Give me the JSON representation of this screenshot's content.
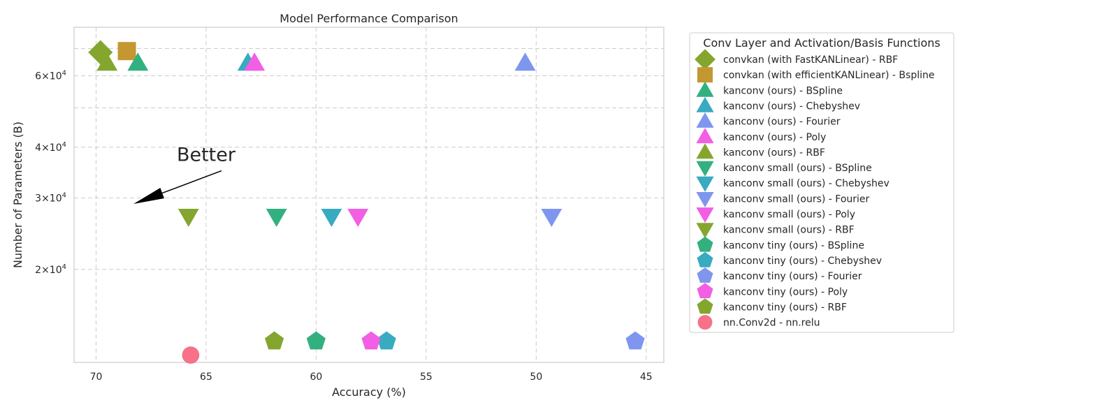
{
  "chart_data": {
    "type": "scatter",
    "title": "Model Performance Comparison",
    "xlabel": "Accuracy (%)",
    "ylabel": "Number of Parameters (B)",
    "x_axis": {
      "range": [
        71,
        44.2
      ],
      "inverted": true,
      "ticks": [
        70,
        65,
        60,
        55,
        50,
        45
      ],
      "tick_labels": [
        "70",
        "65",
        "60",
        "55",
        "50",
        "45"
      ]
    },
    "y_axis": {
      "scale": "log",
      "range": [
        11800,
        79000
      ],
      "major_ticks": [
        20000,
        30000,
        40000,
        60000
      ],
      "major_tick_labels": [
        {
          "base": "2",
          "mult": "×10",
          "exp": "4"
        },
        {
          "base": "3",
          "mult": "×10",
          "exp": "4"
        },
        {
          "base": "4",
          "mult": "×10",
          "exp": "4"
        },
        {
          "base": "6",
          "mult": "×10",
          "exp": "4"
        }
      ],
      "minor_gridlines": [
        50000,
        70000
      ]
    },
    "grid": true,
    "legend": {
      "title": "Conv Layer and Activation/Basis Functions",
      "placement": "outside-right"
    },
    "annotation": {
      "text": "Better",
      "arrow_from": [
        64.3,
        35000
      ],
      "arrow_to": [
        68.3,
        29000
      ],
      "text_at": [
        65,
        37000
      ]
    },
    "series": [
      {
        "name": "convkan (with FastKANLinear) - RBF",
        "marker": "diamond",
        "color": "#84a62e",
        "points": [
          [
            69.8,
            68500
          ]
        ]
      },
      {
        "name": "convkan (with efficientKANLinear) - Bspline",
        "marker": "square",
        "color": "#c59731",
        "points": [
          [
            68.6,
            69000
          ]
        ]
      },
      {
        "name": "kanconv (ours) - BSpline",
        "marker": "triangle-up",
        "color": "#33b080",
        "points": [
          [
            68.1,
            64500
          ]
        ]
      },
      {
        "name": "kanconv (ours) - Chebyshev",
        "marker": "triangle-up",
        "color": "#38abc0",
        "points": [
          [
            63.1,
            64500
          ]
        ]
      },
      {
        "name": "kanconv (ours) - Fourier",
        "marker": "triangle-up",
        "color": "#7f96ef",
        "points": [
          [
            50.5,
            64500
          ]
        ]
      },
      {
        "name": "kanconv (ours) - Poly",
        "marker": "triangle-up",
        "color": "#f25ee4",
        "points": [
          [
            62.8,
            64500
          ]
        ]
      },
      {
        "name": "kanconv (ours) - RBF",
        "marker": "triangle-up",
        "color": "#84a62e",
        "points": [
          [
            69.5,
            64500
          ]
        ]
      },
      {
        "name": "kanconv small (ours) - BSpline",
        "marker": "triangle-down",
        "color": "#33b080",
        "points": [
          [
            61.8,
            27000
          ]
        ]
      },
      {
        "name": "kanconv small (ours) - Chebyshev",
        "marker": "triangle-down",
        "color": "#38abc0",
        "points": [
          [
            59.3,
            27000
          ]
        ]
      },
      {
        "name": "kanconv small (ours) - Fourier",
        "marker": "triangle-down",
        "color": "#7f96ef",
        "points": [
          [
            49.3,
            27000
          ]
        ]
      },
      {
        "name": "kanconv small (ours) - Poly",
        "marker": "triangle-down",
        "color": "#f25ee4",
        "points": [
          [
            58.1,
            27000
          ]
        ]
      },
      {
        "name": "kanconv small (ours) - RBF",
        "marker": "triangle-down",
        "color": "#84a62e",
        "points": [
          [
            65.8,
            27000
          ]
        ]
      },
      {
        "name": "kanconv tiny (ours) - BSpline",
        "marker": "pentagon",
        "color": "#33b080",
        "points": [
          [
            60.0,
            13300
          ]
        ]
      },
      {
        "name": "kanconv tiny (ours) - Chebyshev",
        "marker": "pentagon",
        "color": "#38abc0",
        "points": [
          [
            56.8,
            13300
          ]
        ]
      },
      {
        "name": "kanconv tiny (ours) - Fourier",
        "marker": "pentagon",
        "color": "#7f96ef",
        "points": [
          [
            45.5,
            13300
          ]
        ]
      },
      {
        "name": "kanconv tiny (ours) - Poly",
        "marker": "pentagon",
        "color": "#f25ee4",
        "points": [
          [
            57.5,
            13300
          ]
        ]
      },
      {
        "name": "kanconv tiny (ours) - RBF",
        "marker": "pentagon",
        "color": "#84a62e",
        "points": [
          [
            61.9,
            13300
          ]
        ]
      },
      {
        "name": "nn.Conv2d - nn.relu",
        "marker": "circle",
        "color": "#f77189",
        "points": [
          [
            65.7,
            12300
          ]
        ]
      }
    ]
  }
}
